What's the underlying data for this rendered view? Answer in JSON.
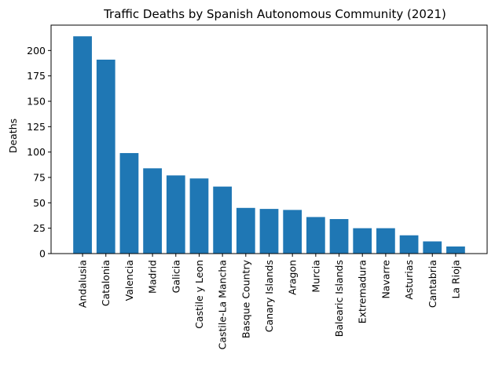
{
  "chart_data": {
    "type": "bar",
    "title": "Traffic Deaths by Spanish Autonomous Community (2021)",
    "xlabel": "",
    "ylabel": "Deaths",
    "ylim": [
      0,
      225
    ],
    "yticks": [
      0,
      25,
      50,
      75,
      100,
      125,
      150,
      175,
      200
    ],
    "grid": false,
    "bar_color": "#1f77b4",
    "categories": [
      "Andalusia",
      "Catalonia",
      "Valencia",
      "Madrid",
      "Galicia",
      "Castile y Leon",
      "Castile-La Mancha",
      "Basque Country",
      "Canary Islands",
      "Aragon",
      "Murcia",
      "Balearic Islands",
      "Extremadura",
      "Navarre",
      "Asturias",
      "Cantabria",
      "La Rioja"
    ],
    "values": [
      214,
      191,
      99,
      84,
      77,
      74,
      66,
      45,
      44,
      43,
      36,
      34,
      25,
      25,
      18,
      12,
      7
    ]
  }
}
